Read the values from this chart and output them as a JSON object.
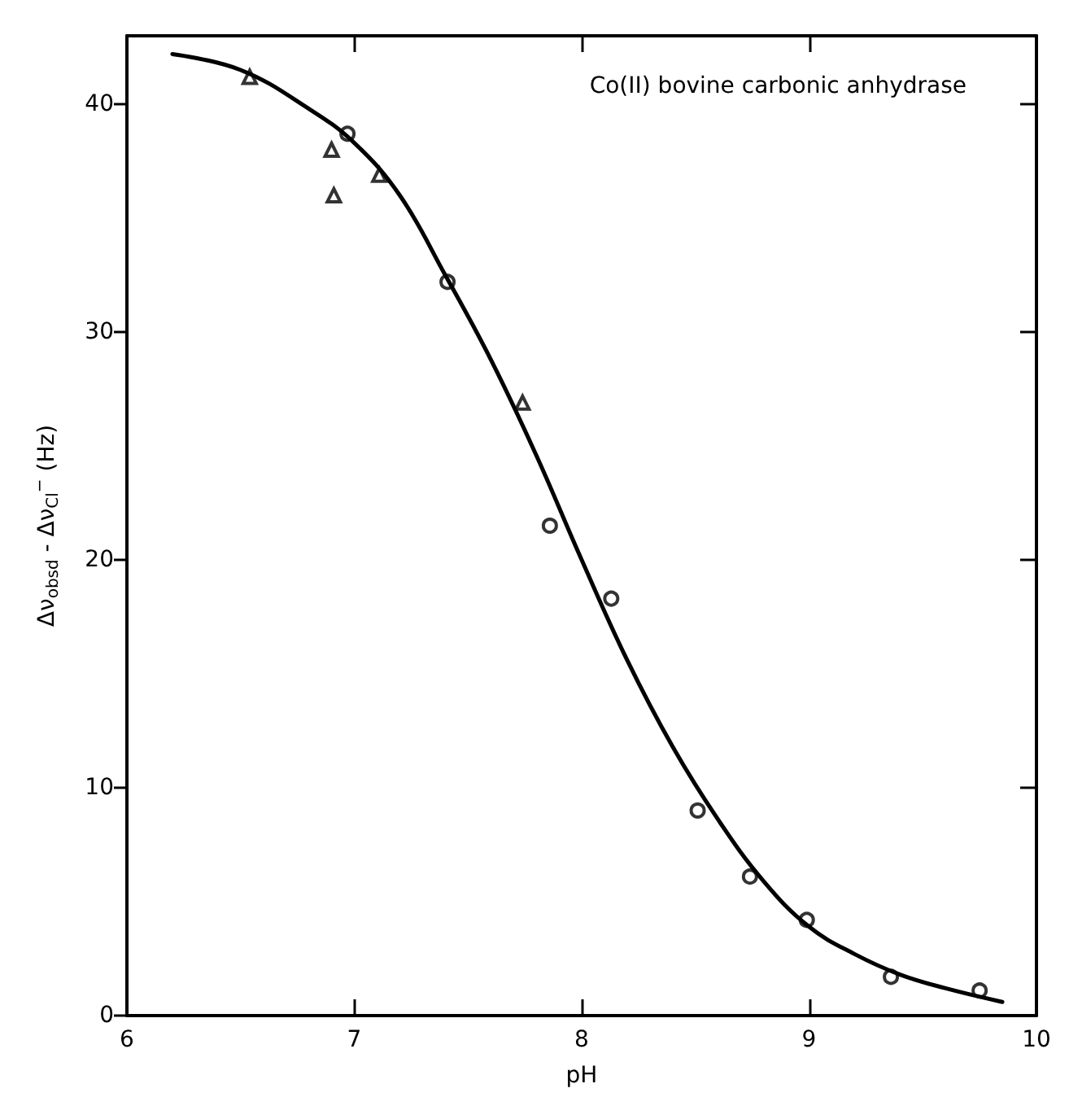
{
  "chart_data": {
    "type": "scatter",
    "xlabel": "pH",
    "ylabel": "Δν$_{obsd}$ - Δν$_{Cl}$$^{−}$ (Hz)",
    "annotations": [
      "Co(II) bovine carbonic anhydrase"
    ],
    "xlim": [
      6,
      10
    ],
    "xticks": [
      6,
      7,
      8,
      9,
      10
    ],
    "ylim": [
      0,
      43
    ],
    "yticks": [
      0,
      10,
      20,
      30,
      40
    ],
    "series": [
      {
        "type": "line",
        "color": "#000000",
        "marker": "none",
        "line_style": "solid",
        "x": [
          6.2,
          6.5,
          6.8,
          7.0,
          7.2,
          7.4,
          7.6,
          7.8,
          8.0,
          8.2,
          8.4,
          8.6,
          8.8,
          9.0,
          9.2,
          9.4,
          9.6,
          9.85
        ],
        "values": [
          42.2,
          41.5,
          39.8,
          38.3,
          36.0,
          32.5,
          28.8,
          24.6,
          20.0,
          15.6,
          11.8,
          8.6,
          5.9,
          3.9,
          2.7,
          1.8,
          1.2,
          0.6
        ]
      },
      {
        "type": "scatter",
        "color": "#000000",
        "marker": "triangle",
        "x": [
          6.54,
          6.9,
          6.91,
          7.11,
          7.74
        ],
        "values": [
          41.2,
          38.0,
          36.0,
          36.9,
          26.9
        ]
      },
      {
        "type": "scatter",
        "color": "#000000",
        "marker": "circle",
        "x": [
          6.97,
          7.41,
          7.86,
          8.13,
          8.51,
          8.74,
          8.99,
          9.36,
          9.75
        ],
        "values": [
          38.7,
          32.2,
          21.5,
          18.3,
          9.0,
          6.1,
          4.2,
          1.7,
          1.1
        ]
      }
    ]
  }
}
